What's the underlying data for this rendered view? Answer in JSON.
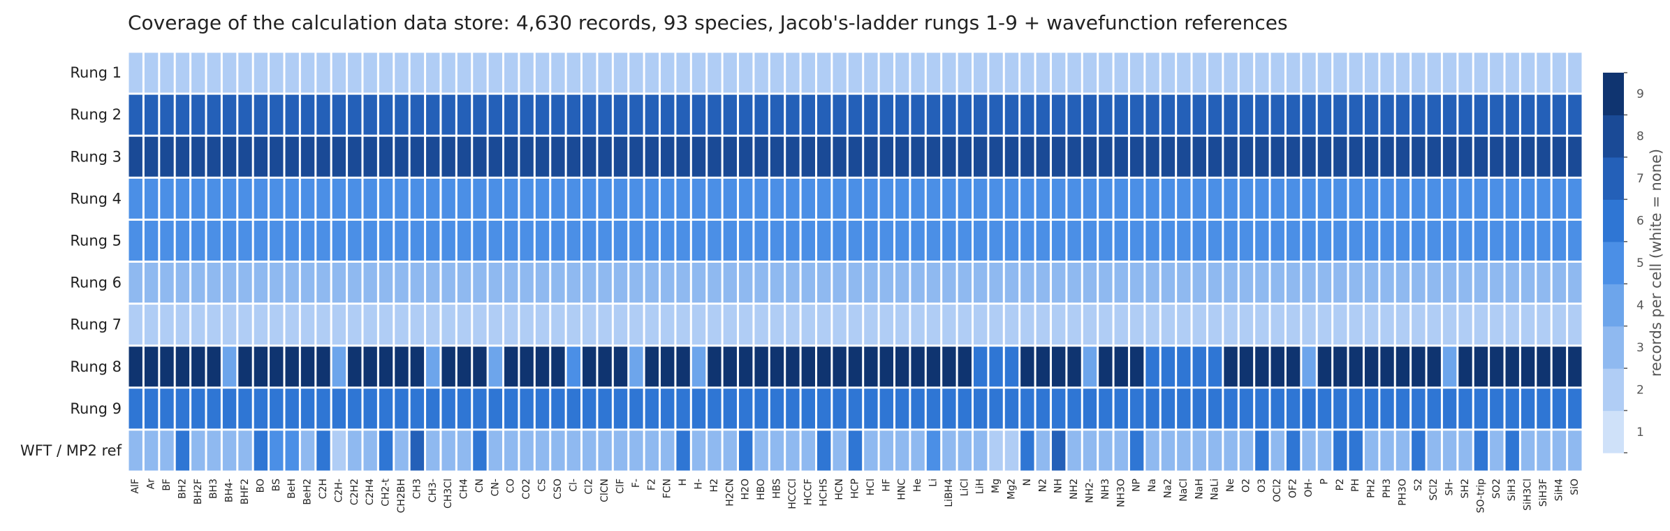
{
  "chart_data": {
    "type": "heatmap",
    "title": "Coverage of the calculation data store: 4,630 records, 93 species, Jacob's-ladder rungs 1-9 + wavefunction references",
    "rows": [
      "Rung 1",
      "Rung 2",
      "Rung 3",
      "Rung 4",
      "Rung 5",
      "Rung 6",
      "Rung 7",
      "Rung 8",
      "Rung 9",
      "WFT / MP2 ref"
    ],
    "columns": [
      "AlF",
      "Ar",
      "BF",
      "BH2",
      "BH2F",
      "BH3",
      "BH4-",
      "BHF2",
      "BO",
      "BS",
      "BeH",
      "BeH2",
      "C2H",
      "C2H-",
      "C2H2",
      "C2H4",
      "CH2-t",
      "CH2BH",
      "CH3",
      "CH3-",
      "CH3Cl",
      "CH4",
      "CN",
      "CN-",
      "CO",
      "CO2",
      "CS",
      "CSO",
      "Cl-",
      "Cl2",
      "ClCN",
      "ClF",
      "F-",
      "F2",
      "FCN",
      "H",
      "H-",
      "H2",
      "H2CN",
      "H2O",
      "HBO",
      "HBS",
      "HCCCl",
      "HCCF",
      "HCHS",
      "HCN",
      "HCP",
      "HCl",
      "HF",
      "HNC",
      "He",
      "Li",
      "LiBH4",
      "LiCl",
      "LiH",
      "Mg",
      "Mg2",
      "N",
      "N2",
      "NH",
      "NH2",
      "NH2-",
      "NH3",
      "NH3O",
      "NP",
      "Na",
      "Na2",
      "NaCl",
      "NaH",
      "NaLi",
      "Ne",
      "O2",
      "O3",
      "OCl2",
      "OF2",
      "OH-",
      "P",
      "P2",
      "PH",
      "PH2",
      "PH3",
      "PH3O",
      "S2",
      "SCl2",
      "SH-",
      "SH2",
      "SO-trip",
      "SO2",
      "SiH3",
      "SiH3Cl",
      "SiH3F",
      "SiH4",
      "SiO"
    ],
    "values": [
      [
        2,
        2,
        2,
        2,
        2,
        2,
        2,
        2,
        2,
        2,
        2,
        2,
        2,
        2,
        2,
        2,
        2,
        2,
        2,
        2,
        2,
        2,
        2,
        2,
        2,
        2,
        2,
        2,
        2,
        2,
        2,
        2,
        2,
        2,
        2,
        2,
        2,
        2,
        2,
        2,
        2,
        2,
        2,
        2,
        2,
        2,
        2,
        2,
        2,
        2,
        2,
        2,
        2,
        2,
        2,
        2,
        2,
        2,
        2,
        2,
        2,
        2,
        2,
        2,
        2,
        2,
        2,
        2,
        2,
        2,
        2,
        2,
        2,
        2,
        2,
        2,
        2,
        2,
        2,
        2,
        2,
        2,
        2,
        2,
        2,
        2,
        2,
        2,
        2,
        2,
        2,
        2,
        2
      ],
      [
        7,
        7,
        7,
        7,
        7,
        7,
        7,
        7,
        7,
        7,
        7,
        7,
        7,
        7,
        7,
        7,
        7,
        7,
        7,
        7,
        7,
        7,
        7,
        7,
        7,
        7,
        7,
        7,
        7,
        7,
        7,
        7,
        7,
        7,
        7,
        7,
        7,
        7,
        7,
        7,
        7,
        7,
        7,
        7,
        7,
        7,
        7,
        7,
        7,
        7,
        7,
        7,
        7,
        7,
        7,
        7,
        7,
        7,
        7,
        7,
        7,
        7,
        7,
        7,
        7,
        7,
        7,
        7,
        7,
        7,
        7,
        7,
        7,
        7,
        7,
        7,
        7,
        7,
        7,
        7,
        7,
        7,
        7,
        7,
        7,
        7,
        7,
        7,
        7,
        7,
        7,
        7,
        7
      ],
      [
        8,
        8,
        8,
        8,
        8,
        8,
        8,
        8,
        8,
        8,
        8,
        8,
        8,
        8,
        8,
        8,
        8,
        8,
        8,
        8,
        8,
        8,
        8,
        8,
        8,
        8,
        8,
        8,
        8,
        8,
        8,
        8,
        8,
        8,
        8,
        8,
        8,
        8,
        8,
        8,
        8,
        8,
        8,
        8,
        8,
        8,
        8,
        8,
        8,
        8,
        8,
        8,
        8,
        8,
        8,
        8,
        8,
        8,
        8,
        8,
        8,
        8,
        8,
        8,
        8,
        8,
        8,
        8,
        8,
        8,
        8,
        8,
        8,
        8,
        8,
        8,
        8,
        8,
        8,
        8,
        8,
        8,
        8,
        8,
        8,
        8,
        8,
        8,
        8,
        8,
        8,
        8,
        8
      ],
      [
        5,
        5,
        5,
        5,
        5,
        5,
        5,
        5,
        5,
        5,
        5,
        5,
        5,
        5,
        5,
        5,
        5,
        5,
        5,
        5,
        5,
        5,
        5,
        5,
        5,
        5,
        5,
        5,
        5,
        5,
        5,
        5,
        5,
        5,
        5,
        5,
        5,
        5,
        5,
        5,
        5,
        5,
        5,
        5,
        5,
        5,
        5,
        5,
        5,
        5,
        5,
        5,
        5,
        5,
        5,
        5,
        5,
        5,
        5,
        5,
        5,
        5,
        5,
        5,
        5,
        5,
        5,
        5,
        5,
        5,
        5,
        5,
        5,
        5,
        5,
        5,
        5,
        5,
        5,
        5,
        5,
        5,
        5,
        5,
        5,
        5,
        5,
        5,
        5,
        5,
        5,
        5,
        5
      ],
      [
        5,
        5,
        5,
        5,
        5,
        5,
        5,
        5,
        5,
        5,
        5,
        5,
        5,
        5,
        5,
        5,
        5,
        5,
        5,
        5,
        5,
        5,
        5,
        5,
        5,
        5,
        5,
        5,
        5,
        5,
        5,
        5,
        5,
        5,
        5,
        5,
        5,
        5,
        5,
        5,
        5,
        5,
        5,
        5,
        5,
        5,
        5,
        5,
        5,
        5,
        5,
        5,
        5,
        5,
        5,
        5,
        5,
        5,
        5,
        5,
        5,
        5,
        5,
        5,
        5,
        5,
        5,
        5,
        5,
        5,
        5,
        5,
        5,
        5,
        5,
        5,
        5,
        5,
        5,
        5,
        5,
        5,
        5,
        5,
        5,
        5,
        5,
        5,
        5,
        5,
        5,
        5,
        5
      ],
      [
        3,
        3,
        3,
        3,
        3,
        3,
        3,
        3,
        3,
        3,
        3,
        3,
        3,
        3,
        3,
        3,
        3,
        3,
        3,
        3,
        3,
        3,
        3,
        3,
        3,
        3,
        3,
        3,
        3,
        3,
        3,
        3,
        3,
        3,
        3,
        3,
        3,
        3,
        3,
        3,
        3,
        3,
        3,
        3,
        3,
        3,
        3,
        3,
        3,
        3,
        3,
        3,
        3,
        3,
        3,
        3,
        3,
        3,
        3,
        3,
        3,
        3,
        3,
        3,
        3,
        3,
        3,
        3,
        3,
        3,
        3,
        3,
        3,
        3,
        3,
        3,
        3,
        3,
        3,
        3,
        3,
        3,
        3,
        3,
        3,
        3,
        3,
        3,
        3,
        3,
        3,
        3,
        3
      ],
      [
        2,
        2,
        2,
        2,
        2,
        2,
        2,
        2,
        2,
        2,
        2,
        2,
        2,
        2,
        2,
        2,
        2,
        2,
        2,
        2,
        2,
        2,
        2,
        2,
        2,
        2,
        2,
        2,
        2,
        2,
        2,
        2,
        2,
        2,
        2,
        2,
        2,
        2,
        2,
        2,
        2,
        2,
        2,
        2,
        2,
        2,
        2,
        2,
        2,
        2,
        2,
        2,
        2,
        2,
        2,
        2,
        2,
        2,
        2,
        2,
        2,
        2,
        2,
        2,
        2,
        2,
        2,
        2,
        2,
        2,
        2,
        2,
        2,
        2,
        2,
        2,
        2,
        2,
        2,
        2,
        2,
        2,
        2,
        2,
        2,
        2,
        2,
        2,
        2,
        2,
        2,
        2,
        2
      ],
      [
        9,
        9,
        9,
        9,
        9,
        9,
        4,
        9,
        9,
        9,
        9,
        9,
        9,
        4,
        9,
        9,
        9,
        9,
        9,
        4,
        9,
        9,
        9,
        4,
        9,
        9,
        9,
        9,
        5,
        9,
        9,
        9,
        4,
        9,
        9,
        9,
        4,
        9,
        9,
        9,
        9,
        9,
        9,
        9,
        9,
        9,
        9,
        9,
        9,
        9,
        9,
        9,
        9,
        9,
        6,
        6,
        6,
        9,
        9,
        9,
        9,
        4,
        9,
        9,
        9,
        6,
        6,
        6,
        6,
        6,
        9,
        9,
        9,
        9,
        9,
        4,
        9,
        9,
        9,
        9,
        9,
        9,
        9,
        9,
        4,
        9,
        9,
        9,
        9,
        9,
        9,
        9,
        9
      ],
      [
        6,
        6,
        6,
        6,
        6,
        6,
        6,
        6,
        6,
        6,
        6,
        6,
        6,
        6,
        6,
        6,
        6,
        6,
        6,
        6,
        6,
        6,
        6,
        6,
        6,
        6,
        6,
        6,
        6,
        6,
        6,
        6,
        6,
        6,
        6,
        6,
        6,
        6,
        6,
        6,
        6,
        6,
        6,
        6,
        6,
        6,
        6,
        6,
        6,
        6,
        6,
        6,
        6,
        6,
        6,
        6,
        6,
        6,
        6,
        6,
        6,
        6,
        6,
        6,
        6,
        6,
        6,
        6,
        6,
        6,
        6,
        6,
        6,
        6,
        6,
        6,
        6,
        6,
        6,
        6,
        6,
        6,
        6,
        6,
        6,
        6,
        6,
        6,
        6,
        6,
        6,
        6,
        6
      ],
      [
        3,
        3,
        3,
        6,
        3,
        3,
        3,
        3,
        6,
        5,
        5,
        3,
        6,
        2,
        3,
        3,
        6,
        3,
        7,
        3,
        3,
        3,
        6,
        3,
        3,
        3,
        3,
        3,
        3,
        3,
        3,
        3,
        3,
        3,
        3,
        6,
        3,
        3,
        3,
        6,
        3,
        3,
        3,
        3,
        6,
        3,
        6,
        3,
        3,
        3,
        3,
        5,
        3,
        3,
        3,
        2,
        2,
        6,
        3,
        7,
        3,
        3,
        3,
        3,
        6,
        3,
        3,
        3,
        3,
        3,
        3,
        3,
        6,
        3,
        6,
        3,
        3,
        6,
        6,
        3,
        3,
        3,
        6,
        3,
        3,
        3,
        6,
        3,
        6,
        3,
        3,
        3,
        3
      ]
    ],
    "colorbar": {
      "label": "records per cell (white = none)",
      "ticks": [
        1,
        2,
        3,
        4,
        5,
        6,
        7,
        8,
        9
      ],
      "colors": [
        "#cfe1f9",
        "#b0cdf5",
        "#8fb9f0",
        "#6da5eb",
        "#4b8fe6",
        "#2f76d4",
        "#2460b8",
        "#1a4a96",
        "#0f3470"
      ],
      "empty_color": "#ffffff"
    },
    "grid_color": "#ffffff"
  }
}
